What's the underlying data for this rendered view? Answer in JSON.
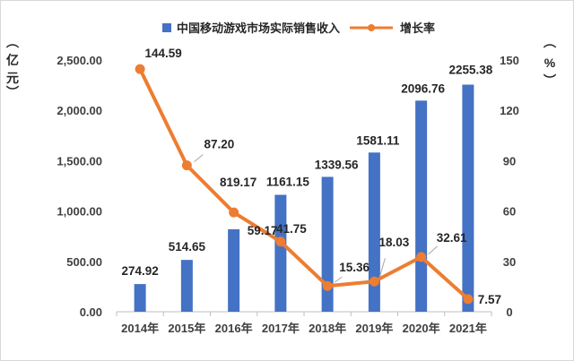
{
  "chart_data": {
    "type": "bar",
    "categories": [
      "2014年",
      "2015年",
      "2016年",
      "2017年",
      "2018年",
      "2019年",
      "2020年",
      "2021年"
    ],
    "series": [
      {
        "name": "中国移动游戏市场实际销售收入",
        "type": "bar",
        "axis": "left",
        "color": "#4472C4",
        "values": [
          274.92,
          514.65,
          819.17,
          1161.15,
          1339.56,
          1581.11,
          2096.76,
          2255.38
        ],
        "labels": [
          "274.92",
          "514.65",
          "819.17",
          "1161.15",
          "1339.56",
          "1581.11",
          "2096.76",
          "2255.38"
        ]
      },
      {
        "name": "增长率",
        "type": "line",
        "axis": "right",
        "color": "#ED7D31",
        "values": [
          144.59,
          87.2,
          59.17,
          41.75,
          15.36,
          18.03,
          32.61,
          7.57
        ],
        "labels": [
          "144.59",
          "87.20",
          "59.17",
          "41.75",
          "15.36",
          "18.03",
          "32.61",
          "7.57"
        ]
      }
    ],
    "y_left": {
      "label": "亿元",
      "ylim": [
        0,
        2500
      ],
      "ticks": [
        "0.00",
        "500.00",
        "1,000.00",
        "1,500.00",
        "2,000.00",
        "2,500.00"
      ]
    },
    "y_right": {
      "label": "%",
      "ylim": [
        0,
        150
      ],
      "ticks": [
        "0",
        "30",
        "60",
        "90",
        "120",
        "150"
      ]
    },
    "grid": false,
    "legend": "top"
  }
}
